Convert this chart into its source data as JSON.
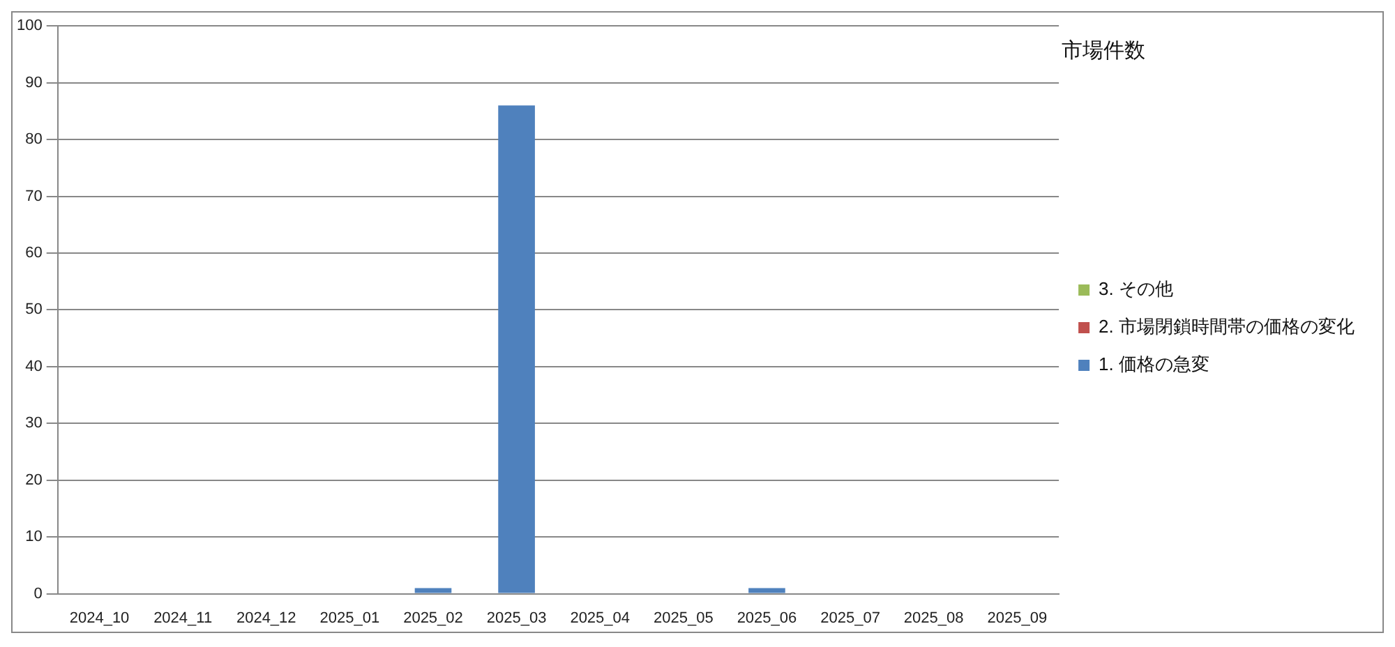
{
  "chart_data": {
    "type": "bar",
    "title": "市場件数",
    "stacked": true,
    "legend": "right",
    "grid": "y",
    "categories": [
      "2024_10",
      "2024_11",
      "2024_12",
      "2025_01",
      "2025_02",
      "2025_03",
      "2025_04",
      "2025_05",
      "2025_06",
      "2025_07",
      "2025_08",
      "2025_09"
    ],
    "series": [
      {
        "name": "1. 価格の急変",
        "color": "#4f81bd",
        "values": [
          0,
          0,
          0,
          0,
          1,
          86,
          0,
          0,
          1,
          0,
          0,
          0
        ]
      },
      {
        "name": "2. 市場閉鎖時間帯の価格の変化",
        "color": "#c0504d",
        "values": [
          0,
          0,
          0,
          0,
          0,
          0,
          0,
          0,
          0,
          0,
          0,
          0
        ]
      },
      {
        "name": "3. その他",
        "color": "#9bbb59",
        "values": [
          0,
          0,
          0,
          0,
          0,
          0,
          0,
          0,
          0,
          0,
          0,
          0
        ]
      }
    ],
    "ylim": [
      0,
      100
    ],
    "yticks": [
      0,
      10,
      20,
      30,
      40,
      50,
      60,
      70,
      80,
      90,
      100
    ]
  }
}
